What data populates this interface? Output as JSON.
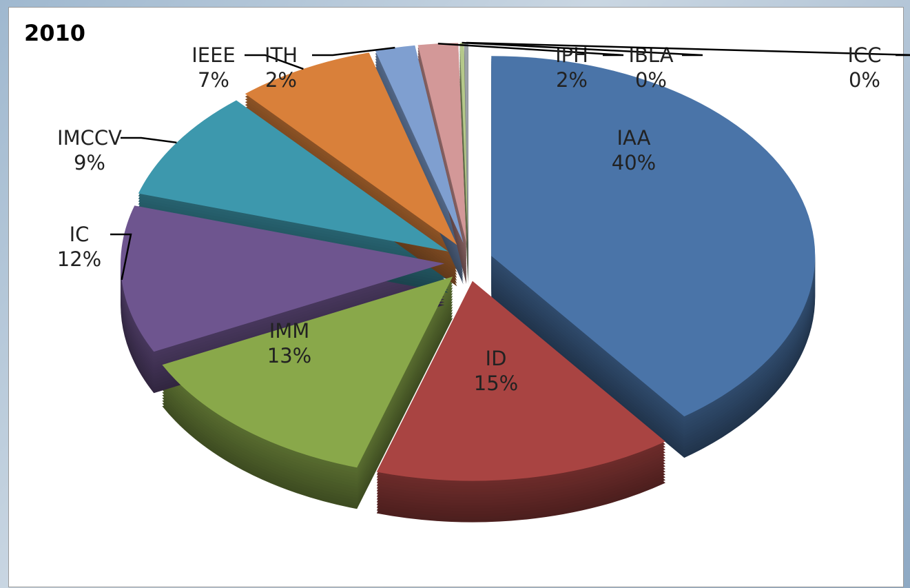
{
  "chart_data": {
    "type": "pie",
    "title": "2010",
    "categories": [
      "IAA",
      "ID",
      "IMM",
      "IC",
      "IMCCV",
      "IEEE",
      "ITH",
      "IPH",
      "IBLA",
      "ICC"
    ],
    "values": [
      40,
      15,
      13,
      12,
      9,
      7,
      2,
      2,
      0.2,
      0.2
    ],
    "value_labels": [
      "40%",
      "15%",
      "13%",
      "12%",
      "9%",
      "7%",
      "2%",
      "2%",
      "0%",
      "0%"
    ],
    "colors": [
      "#4a74a8",
      "#a94442",
      "#89a84a",
      "#6e558f",
      "#3d98ad",
      "#d9803a",
      "#7f9fd0",
      "#d39898",
      "#b5c98a",
      "#9aa0a6"
    ]
  }
}
